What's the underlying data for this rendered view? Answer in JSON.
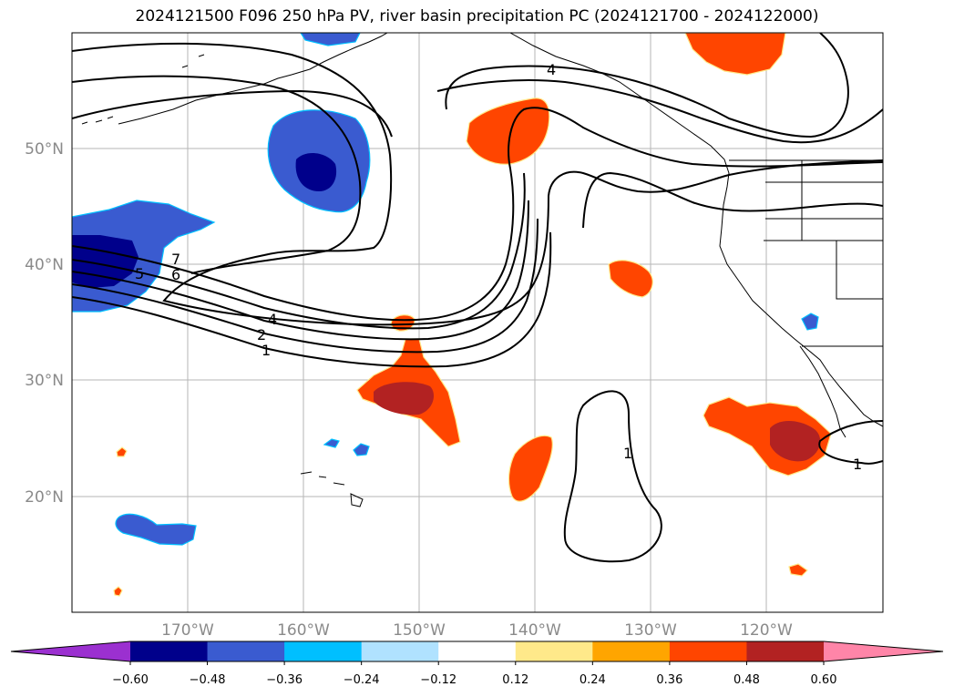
{
  "title": "2024121500 F096 250 hPa PV, river basin precipitation PC (2024121700 - 2024122000)",
  "map": {
    "lon_min": -180,
    "lon_max": -110,
    "lat_min": 10,
    "lat_max": 60,
    "lat_ticks": [
      "20°N",
      "30°N",
      "40°N",
      "50°N"
    ],
    "lon_ticks": [
      "170°W",
      "160°W",
      "150°W",
      "140°W",
      "130°W",
      "120°W"
    ],
    "grid": true,
    "pv_contour_labels": [
      "7",
      "6",
      "5",
      "4",
      "2",
      "1",
      "4",
      "1",
      "1"
    ]
  },
  "colorbar": {
    "ticks": [
      "−0.60",
      "−0.48",
      "−0.36",
      "−0.24",
      "−0.12",
      "0.12",
      "0.24",
      "0.36",
      "0.48",
      "0.60"
    ],
    "colors": [
      "#9b30d0",
      "#00008b",
      "#3a5bd0",
      "#00bfff",
      "#b0e2ff",
      "#ffffff",
      "#ffe98a",
      "#ffa500",
      "#ff4500",
      "#b22222",
      "#ff85a8"
    ]
  }
}
